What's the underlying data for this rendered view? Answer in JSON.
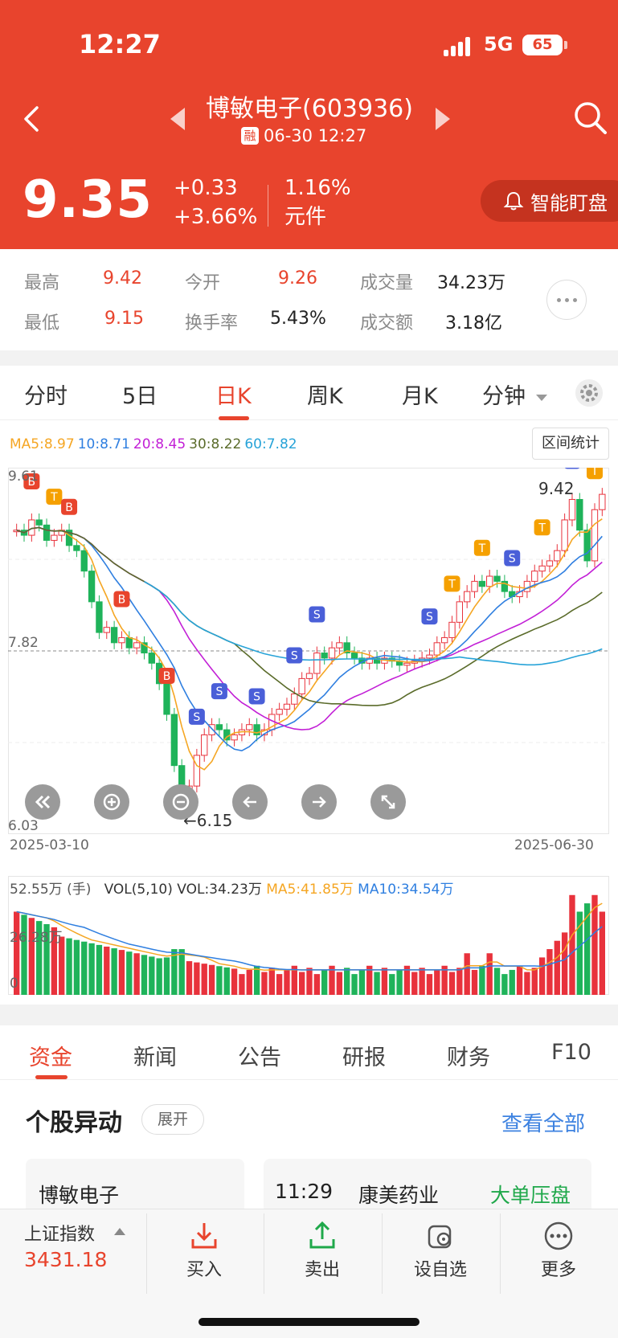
{
  "status_bar": {
    "time": "12:27",
    "network": "5G",
    "battery": "65"
  },
  "header": {
    "title": "博敏电子(603936)",
    "rong_badge": "融",
    "datetime": "06-30 12:27",
    "price": "9.35",
    "change": "+0.33",
    "change_pct": "+3.66%",
    "ratio": "1.16%",
    "ratio_unit": "元件",
    "smart_monitor_label": "智能盯盘",
    "theme_color": "#e8442d"
  },
  "stats": {
    "high_label": "最高",
    "high_value": "9.42",
    "low_label": "最低",
    "low_value": "9.15",
    "open_label": "今开",
    "open_value": "9.26",
    "turnover_label": "换手率",
    "turnover_value": "5.43%",
    "volume_label": "成交量",
    "volume_value": "34.23万",
    "amount_label": "成交额",
    "amount_value": "3.18亿"
  },
  "chart_tabs": {
    "items": [
      "分时",
      "5日",
      "日K",
      "周K",
      "月K",
      "分钟"
    ],
    "active": "日K"
  },
  "ma_legend": {
    "ma5": "MA5:8.97",
    "ma10": "10:8.71",
    "ma20": "20:8.45",
    "ma30": "30:8.22",
    "ma60": "60:7.82",
    "colors": {
      "ma5": "#f5a623",
      "ma10": "#2f7fe0",
      "ma20": "#c21fd6",
      "ma30": "#5a6b2a",
      "ma60": "#27a3d8"
    }
  },
  "range_stats_label": "区间统计",
  "kline": {
    "y_max_label": "9.61",
    "y_mid_label": "7.82",
    "y_min_label": "6.03",
    "high_marker": "9.42",
    "low_marker": "6.15",
    "start_date": "2025-03-10",
    "end_date": "2025-06-30",
    "up_color": "#e8323c",
    "down_color": "#1fb35a"
  },
  "volume": {
    "max_label": "52.55万 (手)",
    "mid_label": "26.28万",
    "zero_label": "0",
    "vol_text": "VOL(5,10) VOL:34.23万",
    "ma5_text": "MA5:41.85万",
    "ma10_text": "MA10:34.54万"
  },
  "chart_data": {
    "type": "candlestick",
    "x_range": [
      "2025-03-10",
      "2025-06-30"
    ],
    "ylim": [
      6.03,
      9.61
    ],
    "reference_line": 7.82,
    "period_high": 9.42,
    "period_low": 6.15,
    "last_close": 9.35,
    "volume_ylim": [
      0,
      52.55
    ],
    "volume_unit": "万手",
    "last_volume": 34.23,
    "volume_ma5": 41.85,
    "volume_ma10": 34.54,
    "series": [
      {
        "name": "MA5",
        "last": 8.97
      },
      {
        "name": "MA10",
        "last": 8.71
      },
      {
        "name": "MA20",
        "last": 8.45
      },
      {
        "name": "MA30",
        "last": 8.22
      },
      {
        "name": "MA60",
        "last": 7.82
      }
    ]
  },
  "section_tabs": {
    "items": [
      "资金",
      "新闻",
      "公告",
      "研报",
      "财务",
      "F10"
    ],
    "active": "资金"
  },
  "anomaly": {
    "title": "个股异动",
    "expand_label": "展开",
    "see_all_label": "查看全部",
    "card1_name": "博敏电子",
    "card2_time": "11:29",
    "card2_name": "康美药业",
    "card2_tag": "大单压盘"
  },
  "bottom_bar": {
    "index_name": "上证指数",
    "index_value": "3431.18",
    "buy_label": "买入",
    "sell_label": "卖出",
    "watch_label": "设自选",
    "more_label": "更多"
  }
}
